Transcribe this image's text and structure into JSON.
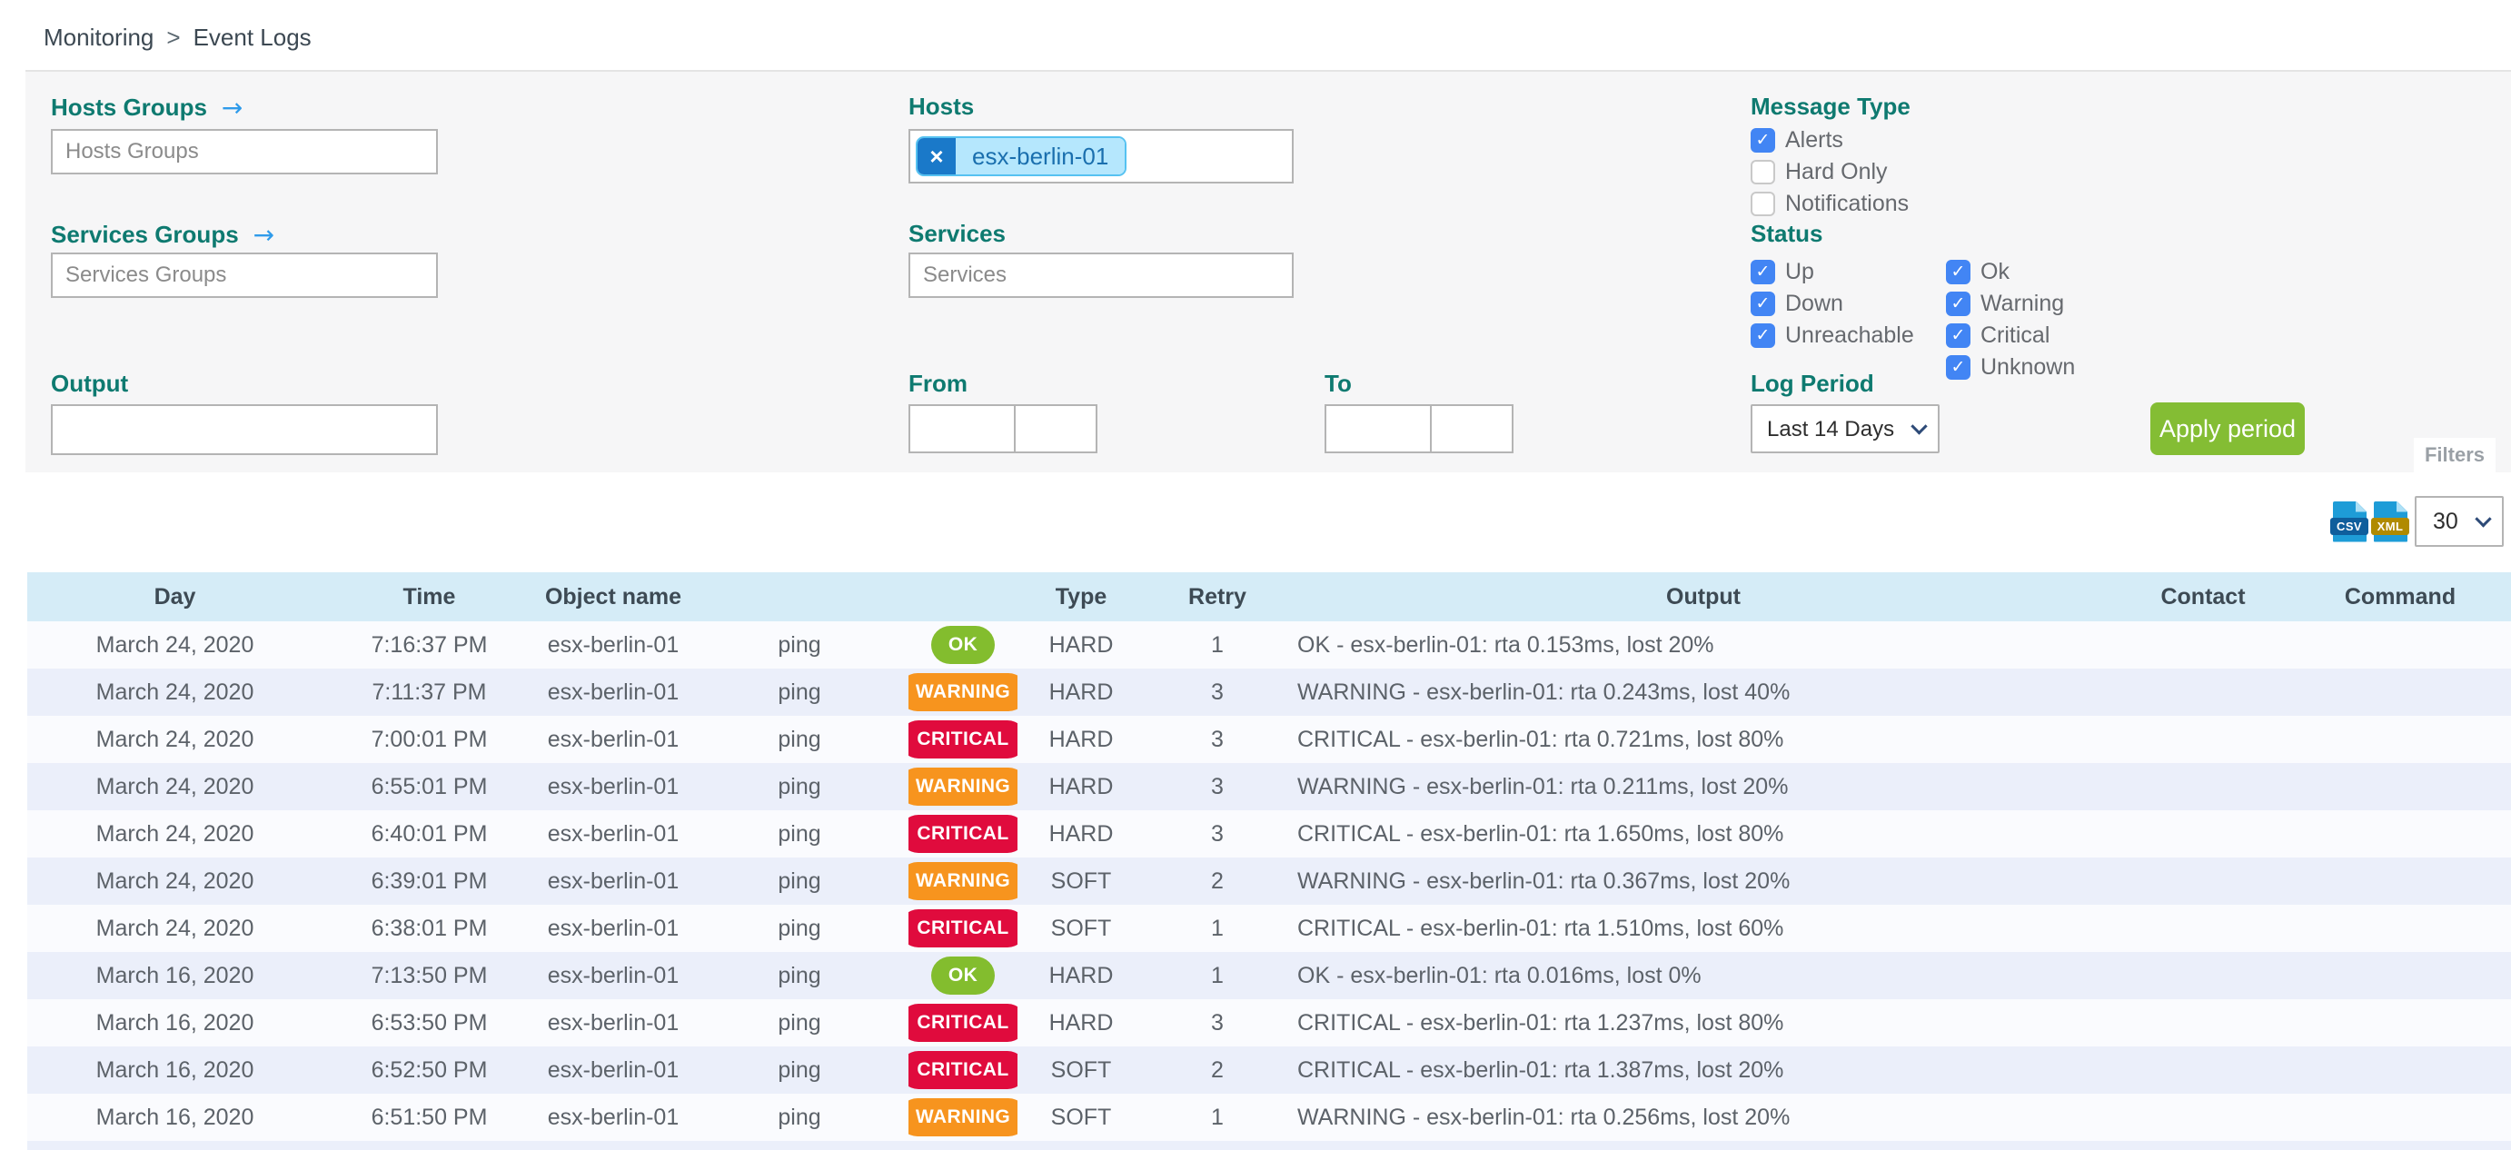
{
  "breadcrumb": {
    "items": [
      "Monitoring",
      "Event Logs"
    ],
    "separator": ">"
  },
  "filters": {
    "panel_tab_label": "Filters",
    "hosts_groups": {
      "label": "Hosts Groups",
      "placeholder": "Hosts Groups",
      "arrow_icon": "→"
    },
    "services_groups": {
      "label": "Services Groups",
      "placeholder": "Services Groups",
      "arrow_icon": "→"
    },
    "hosts": {
      "label": "Hosts",
      "chips": [
        "esx-berlin-01"
      ],
      "chip_remove_icon": "×"
    },
    "services": {
      "label": "Services",
      "placeholder": "Services"
    },
    "output": {
      "label": "Output",
      "value": ""
    },
    "from": {
      "label": "From",
      "date": "",
      "time": ""
    },
    "to": {
      "label": "To",
      "date": "",
      "time": ""
    },
    "message_type": {
      "label": "Message Type",
      "options": [
        {
          "label": "Alerts",
          "checked": true
        },
        {
          "label": "Hard Only",
          "checked": false
        },
        {
          "label": "Notifications",
          "checked": false
        }
      ]
    },
    "status": {
      "label": "Status",
      "col1": [
        {
          "label": "Up",
          "checked": true
        },
        {
          "label": "Down",
          "checked": true
        },
        {
          "label": "Unreachable",
          "checked": true
        }
      ],
      "col2": [
        {
          "label": "Ok",
          "checked": true
        },
        {
          "label": "Warning",
          "checked": true
        },
        {
          "label": "Critical",
          "checked": true
        },
        {
          "label": "Unknown",
          "checked": true
        }
      ]
    },
    "log_period": {
      "label": "Log Period",
      "selected": "Last 14 Days"
    },
    "apply_button_label": "Apply period"
  },
  "toolbar": {
    "export_labels": [
      "CSV",
      "XML"
    ],
    "page_size": "30"
  },
  "table": {
    "headers": [
      "Day",
      "Time",
      "Object name",
      "",
      "",
      "Type",
      "Retry",
      "Output",
      "Contact",
      "Command"
    ],
    "rows": [
      {
        "day": "March 24, 2020",
        "time": "7:16:37 PM",
        "object": "esx-berlin-01",
        "service": "ping",
        "status": "OK",
        "type": "HARD",
        "retry": "1",
        "output": "OK - esx-berlin-01: rta 0.153ms, lost 20%",
        "contact": "",
        "command": ""
      },
      {
        "day": "March 24, 2020",
        "time": "7:11:37 PM",
        "object": "esx-berlin-01",
        "service": "ping",
        "status": "WARNING",
        "type": "HARD",
        "retry": "3",
        "output": "WARNING - esx-berlin-01: rta 0.243ms, lost 40%",
        "contact": "",
        "command": ""
      },
      {
        "day": "March 24, 2020",
        "time": "7:00:01 PM",
        "object": "esx-berlin-01",
        "service": "ping",
        "status": "CRITICAL",
        "type": "HARD",
        "retry": "3",
        "output": "CRITICAL - esx-berlin-01: rta 0.721ms, lost 80%",
        "contact": "",
        "command": ""
      },
      {
        "day": "March 24, 2020",
        "time": "6:55:01 PM",
        "object": "esx-berlin-01",
        "service": "ping",
        "status": "WARNING",
        "type": "HARD",
        "retry": "3",
        "output": "WARNING - esx-berlin-01: rta 0.211ms, lost 20%",
        "contact": "",
        "command": ""
      },
      {
        "day": "March 24, 2020",
        "time": "6:40:01 PM",
        "object": "esx-berlin-01",
        "service": "ping",
        "status": "CRITICAL",
        "type": "HARD",
        "retry": "3",
        "output": "CRITICAL - esx-berlin-01: rta 1.650ms, lost 80%",
        "contact": "",
        "command": ""
      },
      {
        "day": "March 24, 2020",
        "time": "6:39:01 PM",
        "object": "esx-berlin-01",
        "service": "ping",
        "status": "WARNING",
        "type": "SOFT",
        "retry": "2",
        "output": "WARNING - esx-berlin-01: rta 0.367ms, lost 20%",
        "contact": "",
        "command": ""
      },
      {
        "day": "March 24, 2020",
        "time": "6:38:01 PM",
        "object": "esx-berlin-01",
        "service": "ping",
        "status": "CRITICAL",
        "type": "SOFT",
        "retry": "1",
        "output": "CRITICAL - esx-berlin-01: rta 1.510ms, lost 60%",
        "contact": "",
        "command": ""
      },
      {
        "day": "March 16, 2020",
        "time": "7:13:50 PM",
        "object": "esx-berlin-01",
        "service": "ping",
        "status": "OK",
        "type": "HARD",
        "retry": "1",
        "output": "OK - esx-berlin-01: rta 0.016ms, lost 0%",
        "contact": "",
        "command": ""
      },
      {
        "day": "March 16, 2020",
        "time": "6:53:50 PM",
        "object": "esx-berlin-01",
        "service": "ping",
        "status": "CRITICAL",
        "type": "HARD",
        "retry": "3",
        "output": "CRITICAL - esx-berlin-01: rta 1.237ms, lost 80%",
        "contact": "",
        "command": ""
      },
      {
        "day": "March 16, 2020",
        "time": "6:52:50 PM",
        "object": "esx-berlin-01",
        "service": "ping",
        "status": "CRITICAL",
        "type": "SOFT",
        "retry": "2",
        "output": "CRITICAL - esx-berlin-01: rta 1.387ms, lost 20%",
        "contact": "",
        "command": ""
      },
      {
        "day": "March 16, 2020",
        "time": "6:51:50 PM",
        "object": "esx-berlin-01",
        "service": "ping",
        "status": "WARNING",
        "type": "SOFT",
        "retry": "1",
        "output": "WARNING - esx-berlin-01: rta 0.256ms, lost 20%",
        "contact": "",
        "command": ""
      }
    ]
  },
  "colors": {
    "label_teal": "#0e7a70",
    "apply_green": "#84bd34",
    "checkbox_blue": "#4285f4",
    "chip_blue": "#1a79c9",
    "chip_light": "#b5e7fd",
    "table_header_bg": "#d5ecf7",
    "row_alt_bg": "#ebeffa",
    "status": {
      "OK": "#83bd2e",
      "WARNING": "#f7941e",
      "CRITICAL": "#e00b3d"
    }
  }
}
